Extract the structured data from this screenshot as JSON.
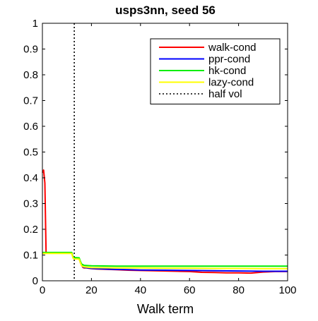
{
  "chart_data": {
    "type": "line",
    "title": "usps3nn, seed 56",
    "xlabel": "Walk term",
    "ylabel": "",
    "xlim": [
      0,
      100
    ],
    "ylim": [
      0,
      1
    ],
    "xticks": [
      0,
      20,
      40,
      60,
      80,
      100
    ],
    "xtick_labels": [
      "0",
      "20",
      "40",
      "60",
      "80",
      "100"
    ],
    "yticks": [
      0,
      0.1,
      0.2,
      0.3,
      0.4,
      0.5,
      0.6,
      0.7,
      0.8,
      0.9,
      1
    ],
    "ytick_labels": [
      "0",
      "0.1",
      "0.2",
      "0.3",
      "0.4",
      "0.5",
      "0.6",
      "0.7",
      "0.8",
      "0.9",
      "1"
    ],
    "grid": false,
    "legend_position": "top-right",
    "series": [
      {
        "name": "walk-cond",
        "color": "#ff0000",
        "x": [
          0,
          0.5,
          1,
          1.5,
          2,
          3,
          5,
          8,
          10,
          12,
          12.5,
          13,
          14,
          15,
          15.5,
          16,
          16.5,
          17,
          18,
          20,
          22,
          25,
          30,
          35,
          40,
          45,
          50,
          55,
          60,
          65,
          70,
          75,
          80,
          85,
          90,
          95,
          100
        ],
        "y": [
          0.42,
          0.43,
          0.38,
          0.11,
          0.108,
          0.107,
          0.107,
          0.107,
          0.107,
          0.107,
          0.09,
          0.087,
          0.086,
          0.086,
          0.07,
          0.06,
          0.052,
          0.05,
          0.05,
          0.047,
          0.046,
          0.045,
          0.043,
          0.041,
          0.04,
          0.039,
          0.038,
          0.037,
          0.036,
          0.033,
          0.032,
          0.031,
          0.031,
          0.03,
          0.034,
          0.036,
          0.036
        ]
      },
      {
        "name": "ppr-cond",
        "color": "#0000ff",
        "x": [
          0,
          2,
          5,
          10,
          12,
          12.5,
          13,
          15,
          15.5,
          16,
          16.5,
          17,
          20,
          25,
          30,
          35,
          40,
          50,
          60,
          70,
          80,
          90,
          100
        ],
        "y": [
          0.108,
          0.108,
          0.108,
          0.108,
          0.108,
          0.09,
          0.087,
          0.086,
          0.072,
          0.06,
          0.054,
          0.052,
          0.048,
          0.046,
          0.044,
          0.043,
          0.042,
          0.041,
          0.04,
          0.039,
          0.038,
          0.037,
          0.037
        ]
      },
      {
        "name": "hk-cond",
        "color": "#00ee00",
        "x": [
          0,
          2,
          5,
          10,
          12,
          12.5,
          13,
          15,
          15.5,
          16,
          17,
          20,
          30,
          40,
          50,
          60,
          70,
          80,
          90,
          100
        ],
        "y": [
          0.11,
          0.11,
          0.11,
          0.11,
          0.11,
          0.092,
          0.09,
          0.089,
          0.075,
          0.065,
          0.06,
          0.058,
          0.057,
          0.057,
          0.057,
          0.057,
          0.057,
          0.057,
          0.057,
          0.057
        ]
      },
      {
        "name": "lazy-cond",
        "color": "#ffff00",
        "x": [
          0,
          2,
          5,
          10,
          12,
          12.5,
          13,
          15,
          15.5,
          16,
          17,
          20,
          30,
          40,
          50,
          60,
          70,
          80,
          90,
          100
        ],
        "y": [
          0.106,
          0.106,
          0.106,
          0.106,
          0.106,
          0.088,
          0.085,
          0.084,
          0.07,
          0.058,
          0.054,
          0.051,
          0.05,
          0.05,
          0.049,
          0.049,
          0.048,
          0.048,
          0.047,
          0.047
        ]
      }
    ],
    "reference_lines": [
      {
        "name": "half vol",
        "orientation": "vertical",
        "x": 13,
        "color": "#000000",
        "style": "dotted"
      }
    ]
  }
}
